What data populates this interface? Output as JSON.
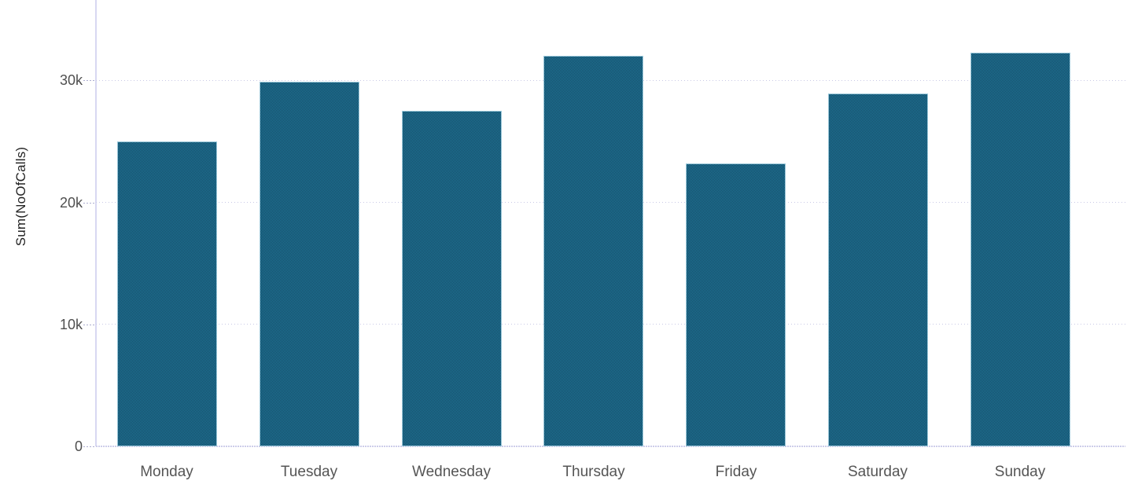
{
  "chart_data": {
    "type": "bar",
    "title": "",
    "categories": [
      "Monday",
      "Tuesday",
      "Wednesday",
      "Thursday",
      "Friday",
      "Saturday",
      "Sunday"
    ],
    "values": [
      25000,
      29900,
      27500,
      32000,
      23200,
      28900,
      32300
    ],
    "xlabel": "",
    "ylabel": "Sum(NoOfCalls)",
    "ylim": [
      0,
      36600
    ],
    "y_ticks": [
      {
        "value": 0,
        "label": "0"
      },
      {
        "value": 10000,
        "label": "10k"
      },
      {
        "value": 20000,
        "label": "20k"
      },
      {
        "value": 30000,
        "label": "30k"
      }
    ],
    "grid": "horizontal-dotted",
    "legend": "none",
    "colors": {
      "bar_base": "#1f81a4",
      "bar_dither_dark": "#16405a",
      "bar_border": "#b2d8e7",
      "gridline": "#c9c9e6",
      "axis_line": "#d8d8f2",
      "tick_label": "#4f4f4f",
      "x_label": "#555555",
      "y_title": "#222222"
    }
  }
}
